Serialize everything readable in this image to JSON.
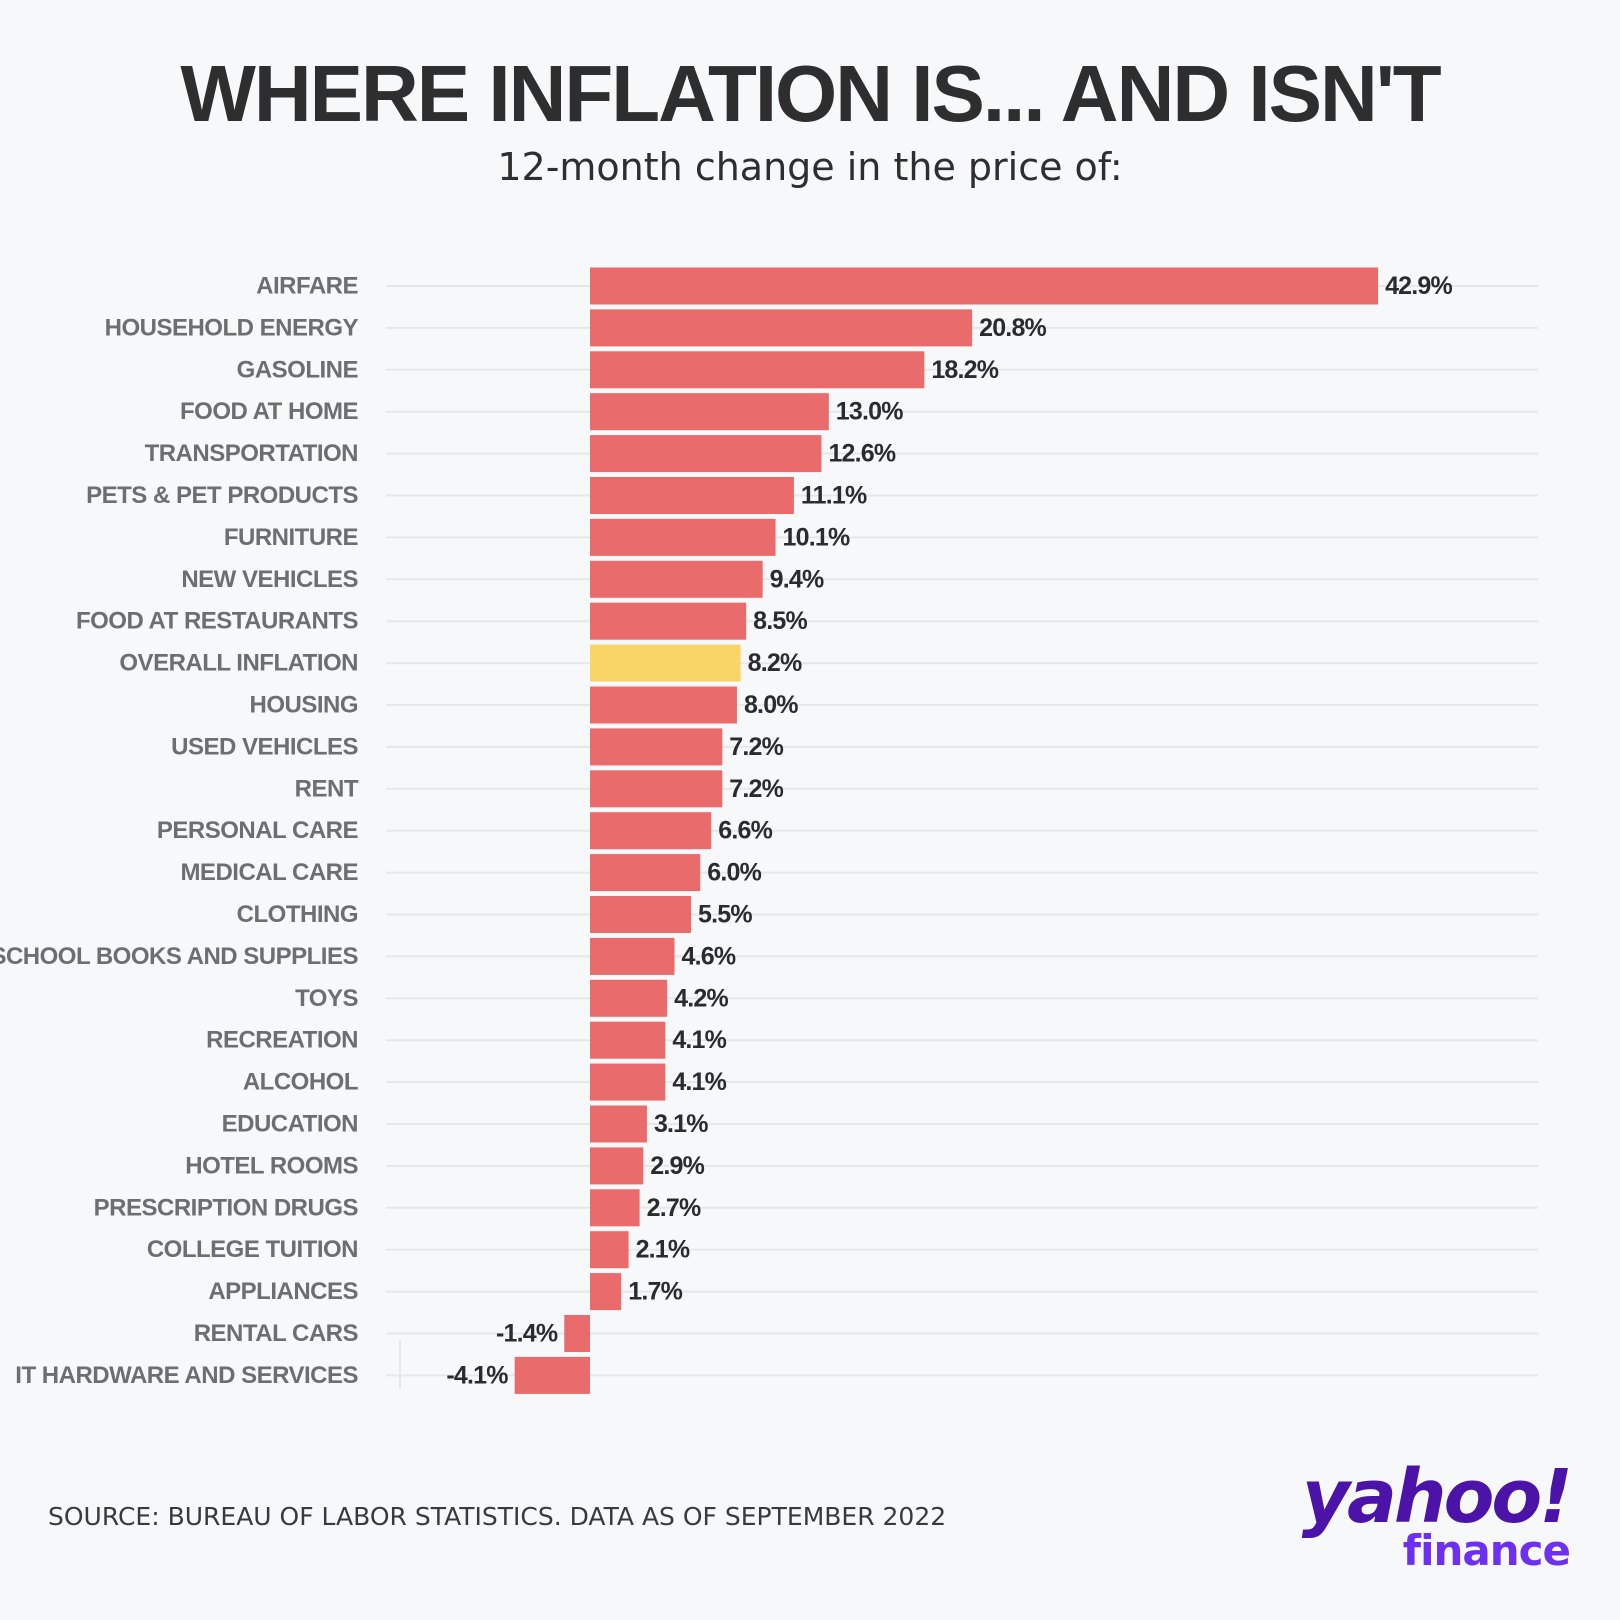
{
  "chart_data": {
    "type": "bar",
    "orientation": "horizontal",
    "title": "WHERE INFLATION IS... AND ISN'T",
    "subtitle": "12-month change in the price of:",
    "unit": "%",
    "categories": [
      "AIRFARE",
      "HOUSEHOLD ENERGY",
      "GASOLINE",
      "FOOD AT HOME",
      "TRANSPORTATION",
      "PETS & PET PRODUCTS",
      "FURNITURE",
      "NEW VEHICLES",
      "FOOD AT RESTAURANTS",
      "OVERALL INFLATION",
      "HOUSING",
      "USED VEHICLES",
      "RENT",
      "PERSONAL CARE",
      "MEDICAL CARE",
      "CLOTHING",
      "SCHOOL BOOKS AND SUPPLIES",
      "TOYS",
      "RECREATION",
      "ALCOHOL",
      "EDUCATION",
      "HOTEL ROOMS",
      "PRESCRIPTION DRUGS",
      "COLLEGE TUITION",
      "APPLIANCES",
      "RENTAL CARS",
      "IT HARDWARE AND SERVICES"
    ],
    "values": [
      42.9,
      20.8,
      18.2,
      13.0,
      12.6,
      11.1,
      10.1,
      9.4,
      8.5,
      8.2,
      8.0,
      7.2,
      7.2,
      6.6,
      6.0,
      5.5,
      4.6,
      4.2,
      4.1,
      4.1,
      3.1,
      2.9,
      2.7,
      2.1,
      1.7,
      -1.4,
      -4.1
    ],
    "value_labels": [
      "42.9%",
      "20.8%",
      "18.2%",
      "13.0%",
      "12.6%",
      "11.1%",
      "10.1%",
      "9.4%",
      "8.5%",
      "8.2%",
      "8.0%",
      "7.2%",
      "7.2%",
      "6.6%",
      "6.0%",
      "5.5%",
      "4.6%",
      "4.2%",
      "4.1%",
      "4.1%",
      "3.1%",
      "2.9%",
      "2.7%",
      "2.1%",
      "1.7%",
      "-1.4%",
      "-4.1%"
    ],
    "highlight_category": "OVERALL INFLATION",
    "xlim": [
      -10,
      50
    ],
    "grid": true,
    "colors": {
      "bar": "#ea6b6b",
      "highlight": "#f9d466",
      "grid": "#e6e7ea",
      "label": "#6e6e6e",
      "value": "#2b2b2b"
    }
  },
  "source": "SOURCE: BUREAU OF LABOR STATISTICS. DATA AS OF SEPTEMBER 2022",
  "brand": {
    "name": "yahoo!",
    "product": "finance"
  }
}
